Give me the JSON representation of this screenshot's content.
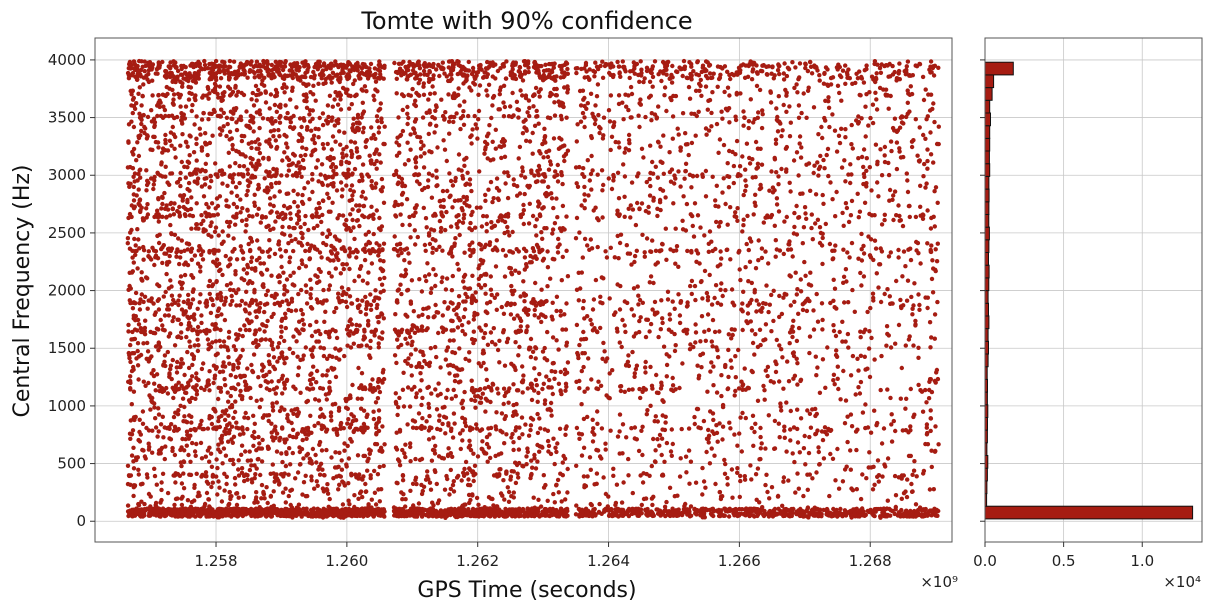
{
  "chart_data": [
    {
      "type": "scatter",
      "title": "Tomte with 90% confidence",
      "xlabel": "GPS Time (seconds)",
      "ylabel": "Central Frequency (Hz)",
      "x_offset_label": "×10⁹",
      "x_ticks": [
        "1.258",
        "1.260",
        "1.262",
        "1.264",
        "1.266",
        "1.268"
      ],
      "x_tick_values": [
        1.258,
        1.26,
        1.262,
        1.264,
        1.266,
        1.268
      ],
      "y_ticks": [
        "0",
        "500",
        "1000",
        "1500",
        "2000",
        "2500",
        "3000",
        "3500",
        "4000"
      ],
      "y_tick_values": [
        0,
        500,
        1000,
        1500,
        2000,
        2500,
        3000,
        3500,
        4000
      ],
      "xlim": [
        1.25615,
        1.26925
      ],
      "ylim": [
        -180,
        4190
      ],
      "x_unit_scale": 1000000000,
      "grid": true,
      "color": "#a61c12",
      "data_segments": [
        {
          "x_range": [
            1.25665,
            1.26058
          ],
          "density": 1.0
        },
        {
          "x_range": [
            1.26072,
            1.26338
          ],
          "density": 0.75
        },
        {
          "x_range": [
            1.2635,
            1.26905
          ],
          "density": 0.45
        }
      ],
      "frequency_bands_hz": [
        60,
        400,
        800,
        1150,
        1650,
        1900,
        2350,
        2650,
        3000,
        3500,
        3700,
        3950
      ]
    },
    {
      "type": "bar",
      "orientation": "horizontal",
      "x_offset_label": "×10⁴",
      "x_ticks": [
        "0.0",
        "0.5",
        "1.0"
      ],
      "x_tick_values": [
        0.0,
        0.5,
        1.0
      ],
      "xlim": [
        0,
        1.38
      ],
      "ylim": [
        -180,
        4190
      ],
      "grid": true,
      "color": "#a61c12",
      "edgecolor": "#111111",
      "bin_width_hz": 110,
      "bins_hz": [
        75,
        185,
        295,
        405,
        515,
        625,
        735,
        845,
        955,
        1065,
        1175,
        1285,
        1395,
        1505,
        1615,
        1725,
        1835,
        1945,
        2055,
        2165,
        2275,
        2385,
        2495,
        2605,
        2715,
        2825,
        2935,
        3045,
        3155,
        3265,
        3375,
        3485,
        3595,
        3705,
        3815,
        3925
      ],
      "counts_x1e4": [
        1.32,
        0.01,
        0.012,
        0.015,
        0.018,
        0.012,
        0.015,
        0.016,
        0.018,
        0.015,
        0.016,
        0.014,
        0.02,
        0.022,
        0.02,
        0.025,
        0.022,
        0.02,
        0.024,
        0.026,
        0.022,
        0.025,
        0.028,
        0.024,
        0.025,
        0.026,
        0.025,
        0.03,
        0.028,
        0.03,
        0.03,
        0.035,
        0.03,
        0.045,
        0.055,
        0.18
      ]
    }
  ]
}
